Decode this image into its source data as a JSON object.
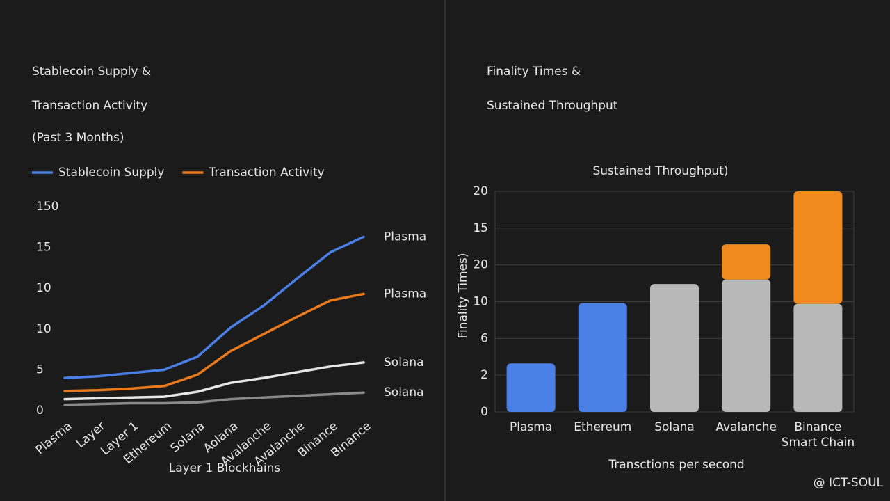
{
  "chart_data": [
    {
      "type": "line",
      "heading_lines": [
        "Stablecoin Supply &",
        "Transaction Activity"
      ],
      "subtitle": "(Past 3 Months)",
      "x_label": "Layer 1 Blockhains",
      "categories": [
        "Plasma",
        "Layer",
        "Layer 1",
        "Ethereum",
        "Solana",
        "Aolana",
        "Avalanche",
        "Avalanche",
        "Binance",
        "Binance"
      ],
      "ylim": [
        0,
        25
      ],
      "yticks": [
        0,
        5,
        10,
        {
          "value": 15,
          "label": "10"
        },
        {
          "value": 20,
          "label": "15"
        },
        {
          "value": 25,
          "label": "150"
        }
      ],
      "series": [
        {
          "name": "Stablecoin Supply",
          "color": "#4a7fe6",
          "end_label": "Plasma",
          "values": [
            4.0,
            4.2,
            4.6,
            5.0,
            6.6,
            10.2,
            12.9,
            16.2,
            19.4,
            21.3
          ]
        },
        {
          "name": "Transaction Activity",
          "color": "#ea7a1c",
          "end_label": "Plasma",
          "values": [
            2.4,
            2.5,
            2.7,
            3.0,
            4.4,
            7.3,
            9.4,
            11.5,
            13.5,
            14.3
          ]
        },
        {
          "color": "#e6e6e6",
          "end_label": "Solana",
          "values": [
            1.4,
            1.5,
            1.6,
            1.7,
            2.3,
            3.4,
            4.0,
            4.7,
            5.4,
            5.9
          ]
        },
        {
          "color": "#8a8a8a",
          "end_label": "Solana",
          "values": [
            0.7,
            0.8,
            0.9,
            0.9,
            1.0,
            1.4,
            1.6,
            1.8,
            2.0,
            2.2
          ]
        }
      ]
    },
    {
      "type": "bar",
      "heading_lines": [
        "Finality Times &",
        "Sustained Throughput"
      ],
      "title": "Sustained Throughput)",
      "y_label": "Finality Times)",
      "x_label": "Transctions per second",
      "categories": [
        [
          "Plasma"
        ],
        [
          "Ethereum"
        ],
        [
          "Solana"
        ],
        [
          "Avalanche"
        ],
        [
          "Binance",
          "Smart Chain"
        ]
      ],
      "ylim": [
        0,
        30
      ],
      "yticks": [
        0,
        {
          "value": 5,
          "label": "2"
        },
        {
          "value": 10,
          "label": "6"
        },
        {
          "value": 15,
          "label": "10"
        },
        20,
        {
          "value": 25,
          "label": "15"
        },
        {
          "value": 30,
          "label": "20"
        }
      ],
      "grid": true,
      "stacked": true,
      "series": [
        {
          "colors": [
            "#4a7fe6",
            "#4a7fe6",
            "#b8b8b8",
            "#b8b8b8",
            "#b8b8b8"
          ],
          "values": [
            6.6,
            14.8,
            17.4,
            18.0,
            14.7
          ]
        },
        {
          "color": "#f08a1c",
          "values": [
            null,
            null,
            null,
            4.8,
            15.3
          ]
        }
      ]
    }
  ],
  "watermark": "@ ICT-SOUL"
}
